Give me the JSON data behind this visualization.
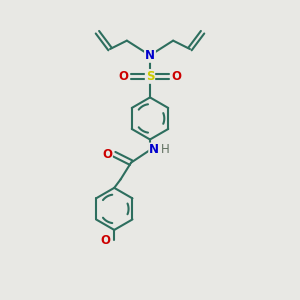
{
  "bg_color": "#e8e8e4",
  "bond_color": "#2d6e5e",
  "atom_colors": {
    "N": "#0000cc",
    "O": "#cc0000",
    "S": "#cccc00",
    "H": "#607060"
  },
  "line_width": 1.5,
  "figsize": [
    3.0,
    3.0
  ],
  "dpi": 100
}
